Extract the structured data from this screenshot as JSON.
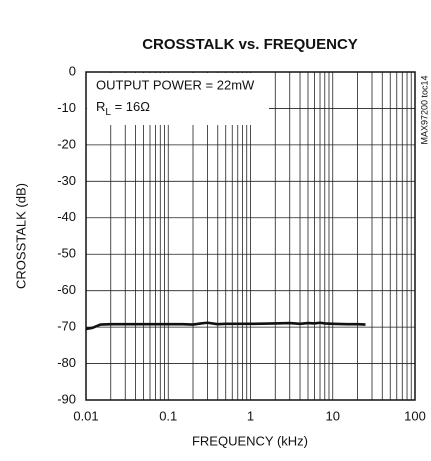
{
  "chart_data": {
    "type": "line",
    "title": "CROSSTALK vs. FREQUENCY",
    "xlabel": "FREQUENCY (kHz)",
    "ylabel": "CROSSTALK (dB)",
    "side_note": "MAX97200 toc14",
    "annotations": [
      {
        "text": "OUTPUT POWER = 22mW"
      },
      {
        "text": "R",
        "sub": "L",
        "rest": " = 16Ω"
      }
    ],
    "xscale": "log",
    "xlim": [
      0.01,
      100
    ],
    "xticks": [
      0.01,
      0.1,
      1,
      10,
      100
    ],
    "ylim": [
      -90,
      0
    ],
    "yticks": [
      0,
      -10,
      -20,
      -30,
      -40,
      -50,
      -60,
      -70,
      -80,
      -90
    ],
    "grid": true,
    "minor_grid": true,
    "series": [
      {
        "name": "crosstalk",
        "color": "#111111",
        "x": [
          0.01,
          0.012,
          0.015,
          0.02,
          0.05,
          0.1,
          0.15,
          0.2,
          0.25,
          0.3,
          0.4,
          0.5,
          1,
          2,
          3,
          4,
          5,
          6,
          7,
          8,
          10,
          15,
          20,
          25
        ],
        "values": [
          -70.5,
          -70.2,
          -69.3,
          -69.2,
          -69.2,
          -69.2,
          -69.2,
          -69.3,
          -69.0,
          -68.8,
          -69.2,
          -69.1,
          -69.1,
          -69.0,
          -68.9,
          -69.1,
          -68.9,
          -69.0,
          -68.8,
          -69.0,
          -69.1,
          -69.2,
          -69.2,
          -69.3
        ]
      }
    ]
  }
}
